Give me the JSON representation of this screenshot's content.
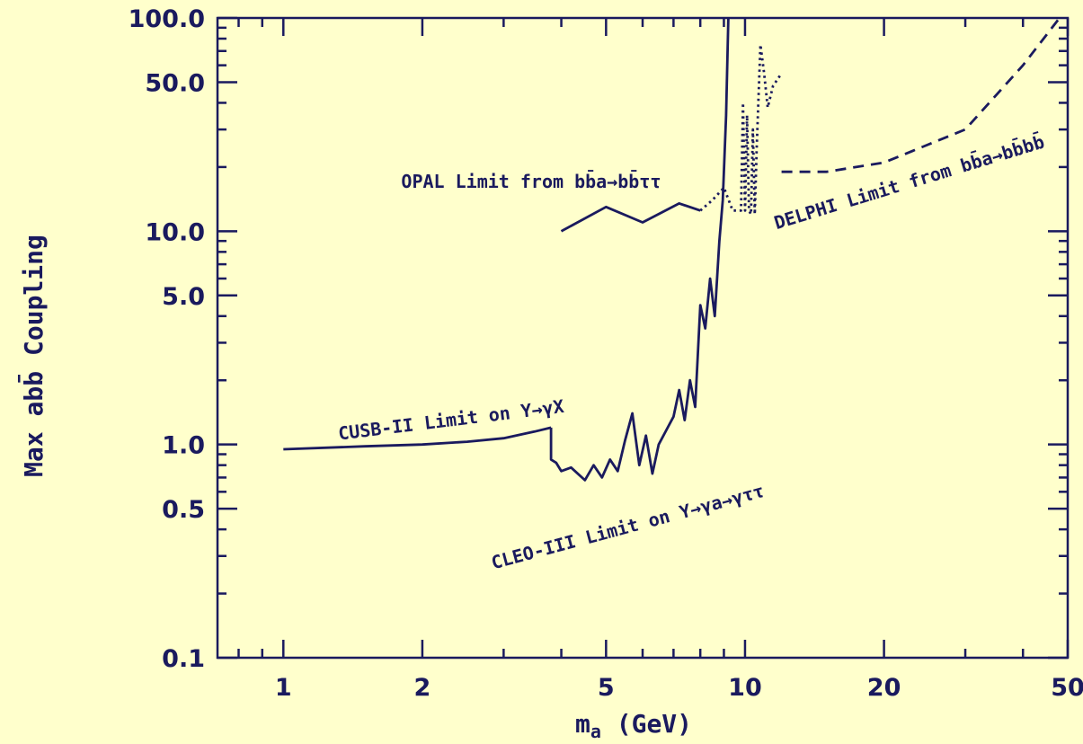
{
  "chart_data": {
    "type": "line",
    "title": "",
    "xlabel": "m",
    "xlabel_sub": "a",
    "xlabel_units": " (GeV)",
    "ylabel": "Max abb̄ Coupling",
    "x_scale": "log",
    "y_scale": "log",
    "xlim": [
      0.72,
      50
    ],
    "ylim": [
      0.1,
      100
    ],
    "grid": false,
    "legend": "none",
    "x_ticks": [
      1,
      2,
      5,
      10,
      20,
      50
    ],
    "x_tick_labels": [
      "1",
      "2",
      "5",
      "10",
      "20",
      "50"
    ],
    "y_ticks": [
      0.1,
      0.5,
      1.0,
      5.0,
      10.0,
      50.0,
      100.0
    ],
    "y_tick_labels": [
      "0.1",
      "0.5",
      "1.0",
      "5.0",
      "10.0",
      "50.0",
      "100.0"
    ],
    "color": "#1a1a5e",
    "series": [
      {
        "label": "CUSB-II Limit on Υ→γX",
        "style": "solid",
        "points": [
          [
            1.0,
            0.95
          ],
          [
            1.5,
            0.98
          ],
          [
            2.0,
            1.0
          ],
          [
            2.5,
            1.03
          ],
          [
            3.0,
            1.07
          ],
          [
            3.5,
            1.15
          ],
          [
            3.8,
            1.2
          ]
        ]
      },
      {
        "label": "CLEO-III Limit on Υ→γa→γττ",
        "style": "solid",
        "points": [
          [
            3.8,
            1.2
          ],
          [
            3.8,
            0.85
          ],
          [
            3.9,
            0.82
          ],
          [
            4.0,
            0.75
          ],
          [
            4.2,
            0.78
          ],
          [
            4.5,
            0.68
          ],
          [
            4.7,
            0.8
          ],
          [
            4.9,
            0.7
          ],
          [
            5.1,
            0.85
          ],
          [
            5.3,
            0.75
          ],
          [
            5.5,
            1.05
          ],
          [
            5.7,
            1.4
          ],
          [
            5.9,
            0.8
          ],
          [
            6.1,
            1.1
          ],
          [
            6.3,
            0.73
          ],
          [
            6.5,
            1.0
          ],
          [
            6.8,
            1.2
          ],
          [
            7.0,
            1.35
          ],
          [
            7.2,
            1.8
          ],
          [
            7.4,
            1.3
          ],
          [
            7.6,
            2.0
          ],
          [
            7.8,
            1.5
          ],
          [
            8.0,
            4.5
          ],
          [
            8.2,
            3.5
          ],
          [
            8.4,
            6.0
          ],
          [
            8.6,
            4.0
          ],
          [
            8.8,
            9.0
          ],
          [
            8.95,
            14.0
          ],
          [
            9.1,
            35.0
          ],
          [
            9.2,
            100.0
          ]
        ]
      },
      {
        "label": "OPAL Limit from bb̄a→bb̄ττ",
        "style": "solid",
        "points": [
          [
            4.0,
            10.0
          ],
          [
            5.0,
            13.0
          ],
          [
            6.0,
            11.0
          ],
          [
            7.2,
            13.5
          ],
          [
            8.0,
            12.5
          ]
        ]
      },
      {
        "label": "OPAL Limit (dotted extension)",
        "style": "dotted",
        "points": [
          [
            8.0,
            12.5
          ],
          [
            8.5,
            14.0
          ],
          [
            9.0,
            16.0
          ],
          [
            9.4,
            12.5
          ],
          [
            9.8,
            12.5
          ],
          [
            9.9,
            40.0
          ],
          [
            10.0,
            12.5
          ],
          [
            10.1,
            35.0
          ],
          [
            10.2,
            12.5
          ],
          [
            10.3,
            12.0
          ],
          [
            10.4,
            30.0
          ],
          [
            10.5,
            12.0
          ],
          [
            10.6,
            25.0
          ],
          [
            10.8,
            75.0
          ],
          [
            11.0,
            55.0
          ],
          [
            11.2,
            38.0
          ],
          [
            11.5,
            48.0
          ],
          [
            12.0,
            55.0
          ]
        ]
      },
      {
        "label": "DELPHI Limit from bb̄a→bb̄bb̄",
        "style": "dashed",
        "points": [
          [
            12.0,
            19.0
          ],
          [
            15.0,
            19.0
          ],
          [
            20.0,
            21.0
          ],
          [
            30.0,
            30.0
          ],
          [
            40.0,
            60.0
          ],
          [
            48.0,
            100.0
          ]
        ]
      }
    ],
    "annotations": [
      {
        "text": "CUSB-II Limit on Υ→γX",
        "x": 1.32,
        "y": 1.05,
        "rotate": -7
      },
      {
        "text": "CLEO-III Limit on Υ→γa→γττ",
        "x": 2.85,
        "y": 0.26,
        "rotate": -15
      },
      {
        "text": "OPAL Limit from bb̄a→bb̄ττ",
        "x": 1.8,
        "y": 16.0,
        "rotate": 0
      },
      {
        "text": "DELPHI Limit from bb̄a→bb̄bb̄",
        "x": 11.7,
        "y": 10.2,
        "rotate": -17
      }
    ]
  }
}
